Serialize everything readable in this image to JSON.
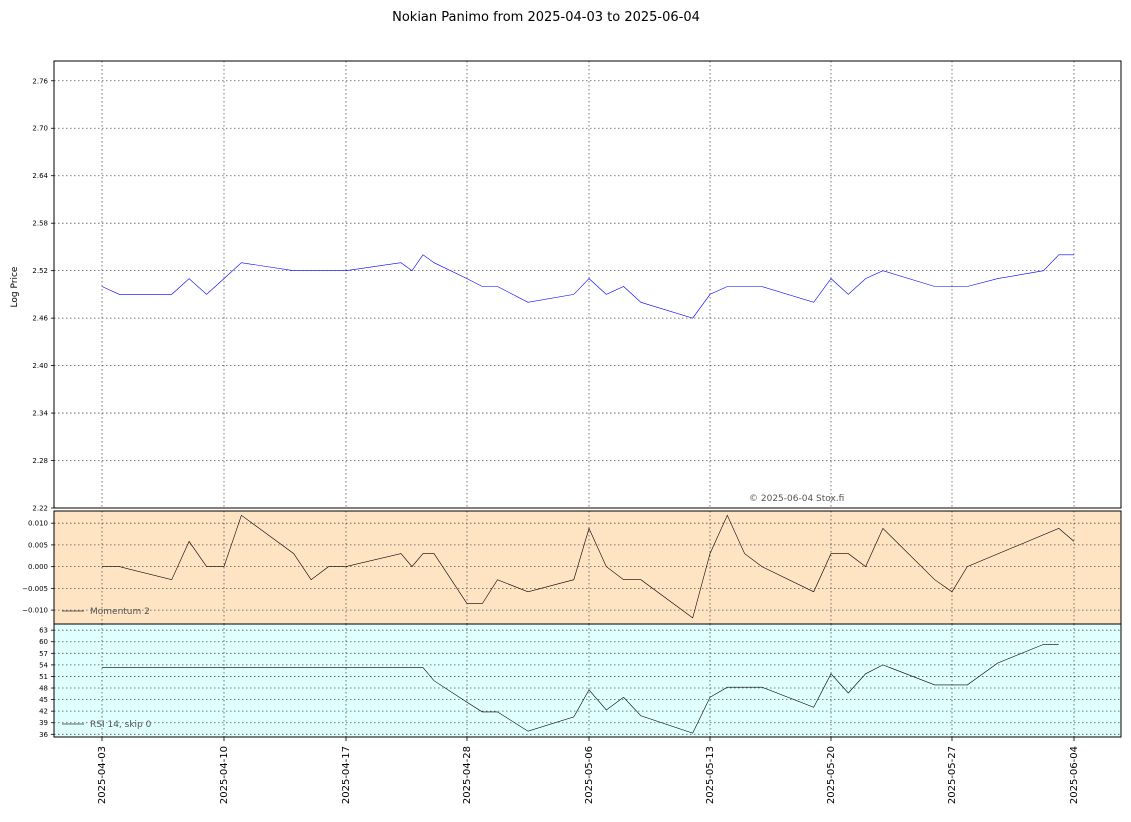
{
  "chart_data": [
    {
      "type": "line",
      "title": "Nokian Panimo from 2025-04-03 to 2025-06-04",
      "ylabel": "Log Price",
      "xlabel": "",
      "ylim": [
        2.22,
        2.785
      ],
      "yticks": [
        "2.22",
        "2.28",
        "2.34",
        "2.40",
        "2.46",
        "2.52",
        "2.58",
        "2.64",
        "2.70",
        "2.76"
      ],
      "xticks": [
        "2025-04-03",
        "2025-04-10",
        "2025-04-17",
        "2025-04-28",
        "2025-05-06",
        "2025-05-13",
        "2025-05-20",
        "2025-05-27",
        "2025-06-04"
      ],
      "grid": true,
      "copyright": "© 2025-06-04 Stox.fi",
      "series": [
        {
          "color": "#0000ff",
          "x": [
            "2025-04-03",
            "2025-04-04",
            "2025-04-07",
            "2025-04-08",
            "2025-04-09",
            "2025-04-10",
            "2025-04-11",
            "2025-04-14",
            "2025-04-15",
            "2025-04-16",
            "2025-04-17",
            "2025-04-22",
            "2025-04-23",
            "2025-04-24",
            "2025-04-25",
            "2025-04-28",
            "2025-04-29",
            "2025-04-30",
            "2025-05-02",
            "2025-05-05",
            "2025-05-06",
            "2025-05-07",
            "2025-05-08",
            "2025-05-09",
            "2025-05-12",
            "2025-05-13",
            "2025-05-14",
            "2025-05-15",
            "2025-05-16",
            "2025-05-19",
            "2025-05-20",
            "2025-05-21",
            "2025-05-22",
            "2025-05-23",
            "2025-05-26",
            "2025-05-27",
            "2025-05-28",
            "2025-05-30",
            "2025-06-02",
            "2025-06-03",
            "2025-06-04"
          ],
          "values": [
            2.5,
            2.49,
            2.49,
            2.51,
            2.49,
            2.51,
            2.53,
            2.52,
            2.52,
            2.52,
            2.52,
            2.53,
            2.52,
            2.54,
            2.53,
            2.51,
            2.5,
            2.5,
            2.48,
            2.49,
            2.51,
            2.49,
            2.5,
            2.48,
            2.46,
            2.49,
            2.5,
            2.5,
            2.5,
            2.48,
            2.51,
            2.49,
            2.51,
            2.52,
            2.5,
            2.5,
            2.5,
            2.51,
            2.52,
            2.54,
            2.54
          ]
        }
      ]
    },
    {
      "type": "line",
      "ylim": [
        -0.0132,
        0.0128
      ],
      "yticks": [
        "−0.010",
        "−0.005",
        "0.000",
        "0.005",
        "0.010"
      ],
      "background": "#ffe4c4",
      "legend": "top-left",
      "legend_loc": "lower-left",
      "series": [
        {
          "name": "Momentum 2",
          "color": "#000000",
          "x": [
            "2025-04-03",
            "2025-04-04",
            "2025-04-07",
            "2025-04-08",
            "2025-04-09",
            "2025-04-10",
            "2025-04-11",
            "2025-04-14",
            "2025-04-15",
            "2025-04-16",
            "2025-04-17",
            "2025-04-22",
            "2025-04-23",
            "2025-04-24",
            "2025-04-25",
            "2025-04-28",
            "2025-04-29",
            "2025-04-30",
            "2025-05-02",
            "2025-05-05",
            "2025-05-06",
            "2025-05-07",
            "2025-05-08",
            "2025-05-09",
            "2025-05-12",
            "2025-05-13",
            "2025-05-14",
            "2025-05-15",
            "2025-05-16",
            "2025-05-19",
            "2025-05-20",
            "2025-05-21",
            "2025-05-22",
            "2025-05-23",
            "2025-05-26",
            "2025-05-27",
            "2025-05-28",
            "2025-06-03",
            "2025-06-04"
          ],
          "values": [
            0.0,
            0.0,
            -0.003,
            0.0058,
            0.0,
            0.0,
            0.0118,
            0.003,
            -0.003,
            0.0,
            0.0,
            0.003,
            0.0,
            0.003,
            0.003,
            -0.0085,
            -0.0085,
            -0.003,
            -0.0058,
            -0.003,
            0.0088,
            0.0,
            -0.003,
            -0.003,
            -0.0118,
            0.003,
            0.0118,
            0.003,
            0.0,
            -0.0058,
            0.003,
            0.003,
            0.0,
            0.0088,
            -0.003,
            -0.0058,
            0.0,
            0.0088,
            0.0058
          ]
        }
      ]
    },
    {
      "type": "line",
      "ylim": [
        35.3,
        64.6
      ],
      "yticks": [
        "36",
        "39",
        "42",
        "45",
        "48",
        "51",
        "54",
        "57",
        "60",
        "63"
      ],
      "background": "#e0ffff",
      "legend_loc": "lower-left",
      "series": [
        {
          "name": "RSI 14, skip 0",
          "color": "#000000",
          "x": [
            "2025-04-03",
            "2025-04-24",
            "2025-04-25",
            "2025-04-28",
            "2025-04-29",
            "2025-04-30",
            "2025-05-02",
            "2025-05-05",
            "2025-05-06",
            "2025-05-07",
            "2025-05-08",
            "2025-05-09",
            "2025-05-12",
            "2025-05-13",
            "2025-05-14",
            "2025-05-15",
            "2025-05-16",
            "2025-05-19",
            "2025-05-20",
            "2025-05-21",
            "2025-05-22",
            "2025-05-23",
            "2025-05-26",
            "2025-05-27",
            "2025-05-28",
            "2025-05-30",
            "2025-06-02",
            "2025-06-03"
          ],
          "values": [
            53.3,
            53.3,
            49.9,
            44.3,
            41.8,
            41.8,
            36.8,
            40.5,
            47.5,
            42.3,
            45.6,
            40.8,
            36.3,
            45.6,
            48.2,
            48.2,
            48.2,
            43.0,
            51.7,
            46.7,
            51.7,
            54.0,
            48.8,
            48.8,
            48.8,
            54.5,
            59.3,
            59.3
          ]
        }
      ]
    }
  ]
}
